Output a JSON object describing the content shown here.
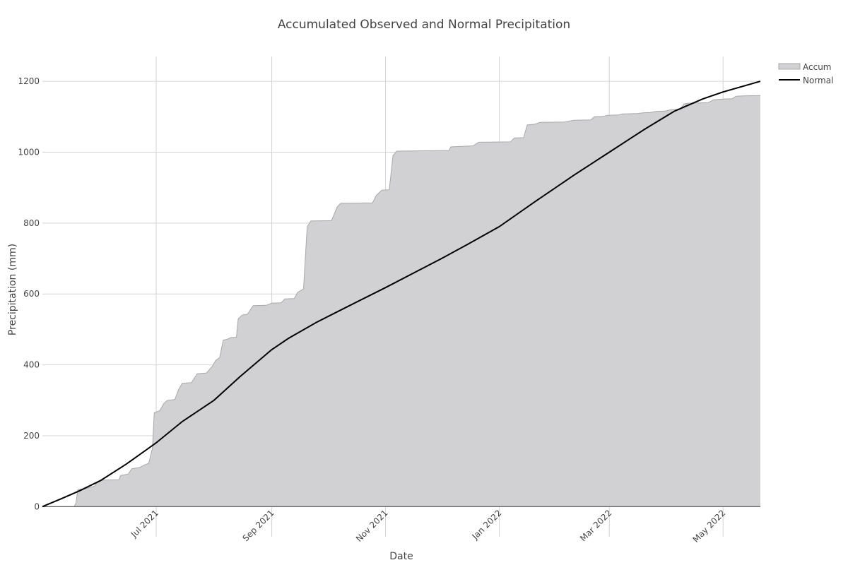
{
  "chart_data": {
    "type": "area",
    "title": "Accumulated Observed and Normal Precipitation",
    "xlabel": "Date",
    "ylabel": "Precipitation (mm)",
    "x_range": [
      "2021-05-01",
      "2022-05-21"
    ],
    "ylim": [
      -85,
      1270
    ],
    "y_ticks": [
      0,
      200,
      400,
      600,
      800,
      1000,
      1200
    ],
    "x_ticks": [
      {
        "date": "2021-07-01",
        "label": "Jul 2021"
      },
      {
        "date": "2021-09-01",
        "label": "Sep 2021"
      },
      {
        "date": "2021-11-01",
        "label": "Nov 2021"
      },
      {
        "date": "2022-01-01",
        "label": "Jan 2022"
      },
      {
        "date": "2022-03-01",
        "label": "Mar 2022"
      },
      {
        "date": "2022-05-01",
        "label": "May 2022"
      }
    ],
    "grid": true,
    "legend_position": "top-right",
    "series": [
      {
        "name": "Accum",
        "kind": "area",
        "color": "#a8a8aa",
        "fill": "#d1d1d3",
        "points": [
          [
            "2021-05-01",
            0
          ],
          [
            "2021-05-18",
            0
          ],
          [
            "2021-05-19",
            10
          ],
          [
            "2021-05-20",
            48
          ],
          [
            "2021-05-25",
            52
          ],
          [
            "2021-05-27",
            55
          ],
          [
            "2021-05-29",
            58
          ],
          [
            "2021-05-31",
            72
          ],
          [
            "2021-06-03",
            75
          ],
          [
            "2021-06-11",
            76
          ],
          [
            "2021-06-12",
            88
          ],
          [
            "2021-06-16",
            92
          ],
          [
            "2021-06-18",
            107
          ],
          [
            "2021-06-22",
            110
          ],
          [
            "2021-06-25",
            118
          ],
          [
            "2021-06-27",
            122
          ],
          [
            "2021-06-29",
            165
          ],
          [
            "2021-06-30",
            265
          ],
          [
            "2021-07-03",
            271
          ],
          [
            "2021-07-05",
            290
          ],
          [
            "2021-07-07",
            300
          ],
          [
            "2021-07-11",
            302
          ],
          [
            "2021-07-13",
            330
          ],
          [
            "2021-07-15",
            348
          ],
          [
            "2021-07-20",
            350
          ],
          [
            "2021-07-23",
            375
          ],
          [
            "2021-07-28",
            377
          ],
          [
            "2021-07-31",
            395
          ],
          [
            "2021-08-02",
            413
          ],
          [
            "2021-08-04",
            420
          ],
          [
            "2021-08-06",
            470
          ],
          [
            "2021-08-08",
            472
          ],
          [
            "2021-08-10",
            477
          ],
          [
            "2021-08-13",
            478
          ],
          [
            "2021-08-14",
            530
          ],
          [
            "2021-08-16",
            540
          ],
          [
            "2021-08-19",
            543
          ],
          [
            "2021-08-22",
            567
          ],
          [
            "2021-08-29",
            568
          ],
          [
            "2021-09-01",
            574
          ],
          [
            "2021-09-06",
            575
          ],
          [
            "2021-09-08",
            586
          ],
          [
            "2021-09-13",
            587
          ],
          [
            "2021-09-15",
            605
          ],
          [
            "2021-09-18",
            614
          ],
          [
            "2021-09-20",
            790
          ],
          [
            "2021-09-22",
            806
          ],
          [
            "2021-10-03",
            807
          ],
          [
            "2021-10-06",
            845
          ],
          [
            "2021-10-08",
            856
          ],
          [
            "2021-10-25",
            857
          ],
          [
            "2021-10-27",
            878
          ],
          [
            "2021-10-30",
            893
          ],
          [
            "2021-11-03",
            894
          ],
          [
            "2021-11-05",
            990
          ],
          [
            "2021-11-07",
            1003
          ],
          [
            "2021-12-05",
            1005
          ],
          [
            "2021-12-06",
            1015
          ],
          [
            "2021-12-10",
            1016
          ],
          [
            "2021-12-18",
            1018
          ],
          [
            "2021-12-21",
            1028
          ],
          [
            "2022-01-07",
            1029
          ],
          [
            "2022-01-09",
            1040
          ],
          [
            "2022-01-14",
            1041
          ],
          [
            "2022-01-16",
            1077
          ],
          [
            "2022-01-20",
            1079
          ],
          [
            "2022-01-23",
            1084
          ],
          [
            "2022-02-05",
            1085
          ],
          [
            "2022-02-10",
            1090
          ],
          [
            "2022-02-19",
            1091
          ],
          [
            "2022-02-21",
            1100
          ],
          [
            "2022-02-26",
            1101
          ],
          [
            "2022-02-28",
            1104
          ],
          [
            "2022-03-06",
            1105
          ],
          [
            "2022-03-08",
            1108
          ],
          [
            "2022-03-16",
            1109
          ],
          [
            "2022-03-19",
            1111
          ],
          [
            "2022-03-23",
            1112
          ],
          [
            "2022-03-26",
            1115
          ],
          [
            "2022-03-31",
            1116
          ],
          [
            "2022-04-03",
            1120
          ],
          [
            "2022-04-08",
            1121
          ],
          [
            "2022-04-10",
            1136
          ],
          [
            "2022-04-12",
            1138
          ],
          [
            "2022-04-23",
            1140
          ],
          [
            "2022-04-26",
            1148
          ],
          [
            "2022-05-01",
            1150
          ],
          [
            "2022-05-06",
            1151
          ],
          [
            "2022-05-08",
            1158
          ],
          [
            "2022-05-12",
            1159
          ],
          [
            "2022-05-21",
            1160
          ]
        ]
      },
      {
        "name": "Normal",
        "kind": "line",
        "color": "#000000",
        "points": [
          [
            "2021-05-01",
            0
          ],
          [
            "2021-05-11",
            22
          ],
          [
            "2021-05-21",
            45
          ],
          [
            "2021-06-01",
            73
          ],
          [
            "2021-06-15",
            120
          ],
          [
            "2021-07-01",
            180
          ],
          [
            "2021-07-15",
            240
          ],
          [
            "2021-08-01",
            300
          ],
          [
            "2021-08-15",
            367
          ],
          [
            "2021-09-01",
            443
          ],
          [
            "2021-09-10",
            475
          ],
          [
            "2021-09-25",
            520
          ],
          [
            "2021-10-10",
            560
          ],
          [
            "2021-11-01",
            618
          ],
          [
            "2021-12-01",
            700
          ],
          [
            "2021-12-15",
            740
          ],
          [
            "2022-01-01",
            790
          ],
          [
            "2022-01-20",
            860
          ],
          [
            "2022-02-10",
            935
          ],
          [
            "2022-03-01",
            1000
          ],
          [
            "2022-03-20",
            1065
          ],
          [
            "2022-04-05",
            1116
          ],
          [
            "2022-04-20",
            1150
          ],
          [
            "2022-05-01",
            1170
          ],
          [
            "2022-05-21",
            1200
          ]
        ]
      }
    ]
  }
}
